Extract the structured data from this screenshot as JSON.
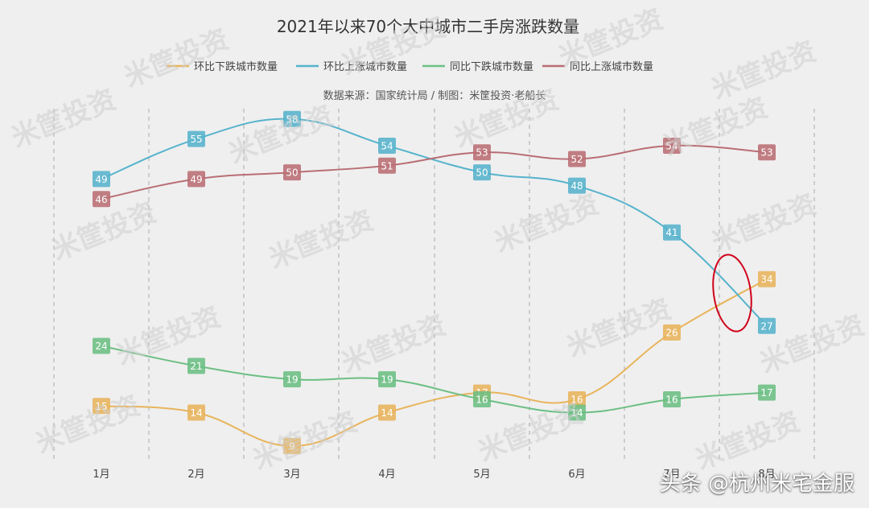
{
  "chart_data": {
    "type": "line",
    "title": "2021年以来70个大中城市二手房涨跌数量",
    "subtitle": "数据来源：国家统计局 / 制图：米筐投资·老船长",
    "categories": [
      "1月",
      "2月",
      "3月",
      "4月",
      "5月",
      "6月",
      "7月",
      "8月"
    ],
    "ylim": [
      0,
      65
    ],
    "grid": "vertical dashed",
    "legend_position": "top-center",
    "series": [
      {
        "name": "环比下跌城市数量",
        "color": "#e8b45c",
        "values": [
          15,
          14,
          9,
          14,
          17,
          16,
          26,
          34
        ]
      },
      {
        "name": "环比上涨城市数量",
        "color": "#56b3cc",
        "values": [
          49,
          55,
          58,
          54,
          50,
          48,
          41,
          27
        ]
      },
      {
        "name": "同比下跌城市数量",
        "color": "#6cbf84",
        "values": [
          24,
          21,
          19,
          19,
          16,
          14,
          16,
          17
        ]
      },
      {
        "name": "同比上涨城市数量",
        "color": "#b96e74",
        "values": [
          46,
          49,
          50,
          51,
          53,
          52,
          54,
          53
        ]
      }
    ],
    "annotation": {
      "type": "ellipse",
      "color": "#d0021b",
      "month_index": 7
    }
  },
  "watermark_text": "米筐投资",
  "caption": "头条 @杭州米宅金服"
}
